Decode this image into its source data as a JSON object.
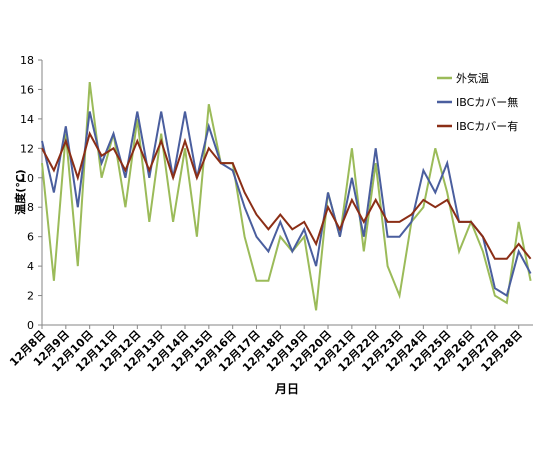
{
  "chart_data": {
    "type": "line",
    "xlabel": "月日",
    "ylabel": "温度(℃)",
    "x": [
      8,
      8.5,
      9,
      9.5,
      10,
      10.5,
      11,
      11.5,
      12,
      12.5,
      13,
      13.5,
      14,
      14.5,
      15,
      15.5,
      16,
      16.5,
      17,
      17.5,
      18,
      18.5,
      19,
      19.5,
      20,
      20.5,
      21,
      21.5,
      22,
      22.5,
      23,
      23.5,
      24,
      24.5,
      25,
      25.5,
      26,
      26.5,
      27,
      27.5,
      28,
      28.5
    ],
    "series": [
      {
        "name": "外気温",
        "color": "#9bbb59",
        "values": [
          11,
          3,
          13,
          4,
          16.5,
          10,
          13,
          8,
          14,
          7,
          13,
          7,
          12,
          6,
          15,
          11,
          11,
          6,
          3,
          3,
          6,
          5,
          6,
          1,
          9,
          6,
          12,
          5,
          11,
          4,
          2,
          7,
          8,
          12,
          9,
          5,
          7,
          5,
          2,
          1.5,
          7,
          3
        ]
      },
      {
        "name": "IBCカバー無",
        "color": "#4a5e9e",
        "values": [
          12.5,
          9,
          13.5,
          8,
          14.5,
          11,
          13,
          10,
          14.5,
          10,
          14.5,
          10,
          14.5,
          10,
          13.5,
          11,
          10.5,
          8,
          6,
          5,
          7,
          5,
          6.5,
          4,
          9,
          6,
          10,
          6,
          12,
          6,
          6,
          7,
          10.5,
          9,
          11,
          7,
          7,
          6,
          2.5,
          2,
          5,
          3.5
        ]
      },
      {
        "name": "IBCカバー有",
        "color": "#8b2e16",
        "values": [
          12,
          10.5,
          12.5,
          10,
          13,
          11.5,
          12,
          10.5,
          12.5,
          10.5,
          12.5,
          10,
          12.5,
          10,
          12,
          11,
          11,
          9,
          7.5,
          6.5,
          7.5,
          6.5,
          7,
          5.5,
          8,
          6.5,
          8.5,
          7,
          8.5,
          7,
          7,
          7.5,
          8.5,
          8,
          8.5,
          7,
          7,
          6,
          4.5,
          4.5,
          5.5,
          4.5
        ]
      }
    ],
    "xlim": [
      8,
      28.6
    ],
    "xticks": [
      {
        "value": 8,
        "label": "12月8日"
      },
      {
        "value": 9,
        "label": "12月9日"
      },
      {
        "value": 10,
        "label": "12月10日"
      },
      {
        "value": 11,
        "label": "12月11日"
      },
      {
        "value": 12,
        "label": "12月12日"
      },
      {
        "value": 13,
        "label": "12月13日"
      },
      {
        "value": 14,
        "label": "12月14日"
      },
      {
        "value": 15,
        "label": "12月15日"
      },
      {
        "value": 16,
        "label": "12月16日"
      },
      {
        "value": 17,
        "label": "12月17日"
      },
      {
        "value": 18,
        "label": "12月18日"
      },
      {
        "value": 19,
        "label": "12月19日"
      },
      {
        "value": 20,
        "label": "12月20日"
      },
      {
        "value": 21,
        "label": "12月21日"
      },
      {
        "value": 22,
        "label": "12月22日"
      },
      {
        "value": 23,
        "label": "12月23日"
      },
      {
        "value": 24,
        "label": "12月24日"
      },
      {
        "value": 25,
        "label": "12月25日"
      },
      {
        "value": 26,
        "label": "12月26日"
      },
      {
        "value": 27,
        "label": "12月27日"
      },
      {
        "value": 28,
        "label": "12月28日"
      }
    ],
    "ylim": [
      0,
      18
    ],
    "yticks": [
      0,
      2,
      4,
      6,
      8,
      10,
      12,
      14,
      16,
      18
    ],
    "legend": "upper right"
  }
}
